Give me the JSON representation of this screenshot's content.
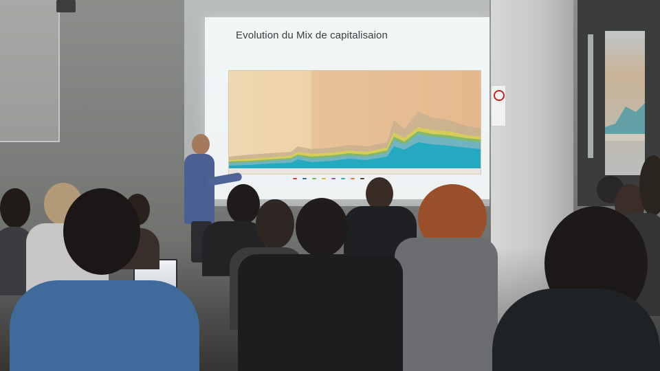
{
  "slide": {
    "title": "Evolution du Mix de capitalisaion"
  },
  "chart_data": {
    "type": "area",
    "series_colors": [
      "#1da7c0",
      "#6fb4c9",
      "#75b36c",
      "#d8d34c",
      "#b8a07a"
    ],
    "legend_colors": [
      "#d23b3b",
      "#1b6fb4",
      "#78b64f",
      "#e0b63a",
      "#9c4fb4",
      "#2bb3a3",
      "#e07c2e",
      "#3f3f3f"
    ]
  },
  "colors": {
    "projection_bg": "#eef2f3",
    "chart_bg": "#e7c197",
    "speaker_shirt": "#4b5f93"
  }
}
